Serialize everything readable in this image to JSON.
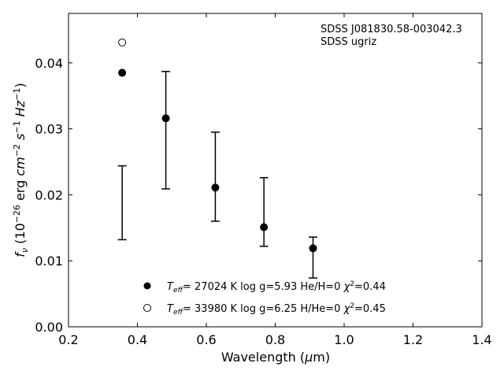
{
  "chart_data": {
    "type": "scatter",
    "title": "",
    "annotation_lines": [
      "SDSS J081830.58-003042.3",
      "SDSS ugriz"
    ],
    "xlabel": "Wavelength (μm)",
    "ylabel": "fν (10⁻²⁶ erg cm⁻² s⁻¹ Hz⁻¹)",
    "xlim": [
      0.2,
      1.4
    ],
    "ylim": [
      0.0,
      0.0475
    ],
    "xticks": [
      0.2,
      0.4,
      0.6,
      0.8,
      1.0,
      1.2,
      1.4
    ],
    "xtick_labels": [
      "0.2",
      "0.4",
      "0.6",
      "0.8",
      "1.0",
      "1.2",
      "1.4"
    ],
    "yticks": [
      0.0,
      0.01,
      0.02,
      0.03,
      0.04
    ],
    "ytick_labels": [
      "0.00",
      "0.01",
      "0.02",
      "0.03",
      "0.04"
    ],
    "grid": false,
    "legend_position": "bottom-center",
    "errorbars": {
      "name": "SDSS ugriz",
      "x": [
        0.3557,
        0.4825,
        0.6261,
        0.7672,
        0.9097
      ],
      "y_low": [
        0.0132,
        0.0209,
        0.016,
        0.0122,
        0.0074
      ],
      "y_high": [
        0.0244,
        0.0387,
        0.0295,
        0.0226,
        0.0136
      ]
    },
    "series": [
      {
        "name": "T_eff= 27024 K  log g=5.93  He/H=0  χ²=0.44",
        "marker": "filled-circle",
        "x": [
          0.3557,
          0.4825,
          0.6261,
          0.7672,
          0.9097
        ],
        "y": [
          0.0385,
          0.0316,
          0.0211,
          0.0151,
          0.0119
        ]
      },
      {
        "name": "T_eff= 33980 K  log g=6.25  H/He=0  χ²=0.45",
        "marker": "open-circle",
        "x": [
          0.3557
        ],
        "y": [
          0.0431
        ]
      }
    ]
  }
}
